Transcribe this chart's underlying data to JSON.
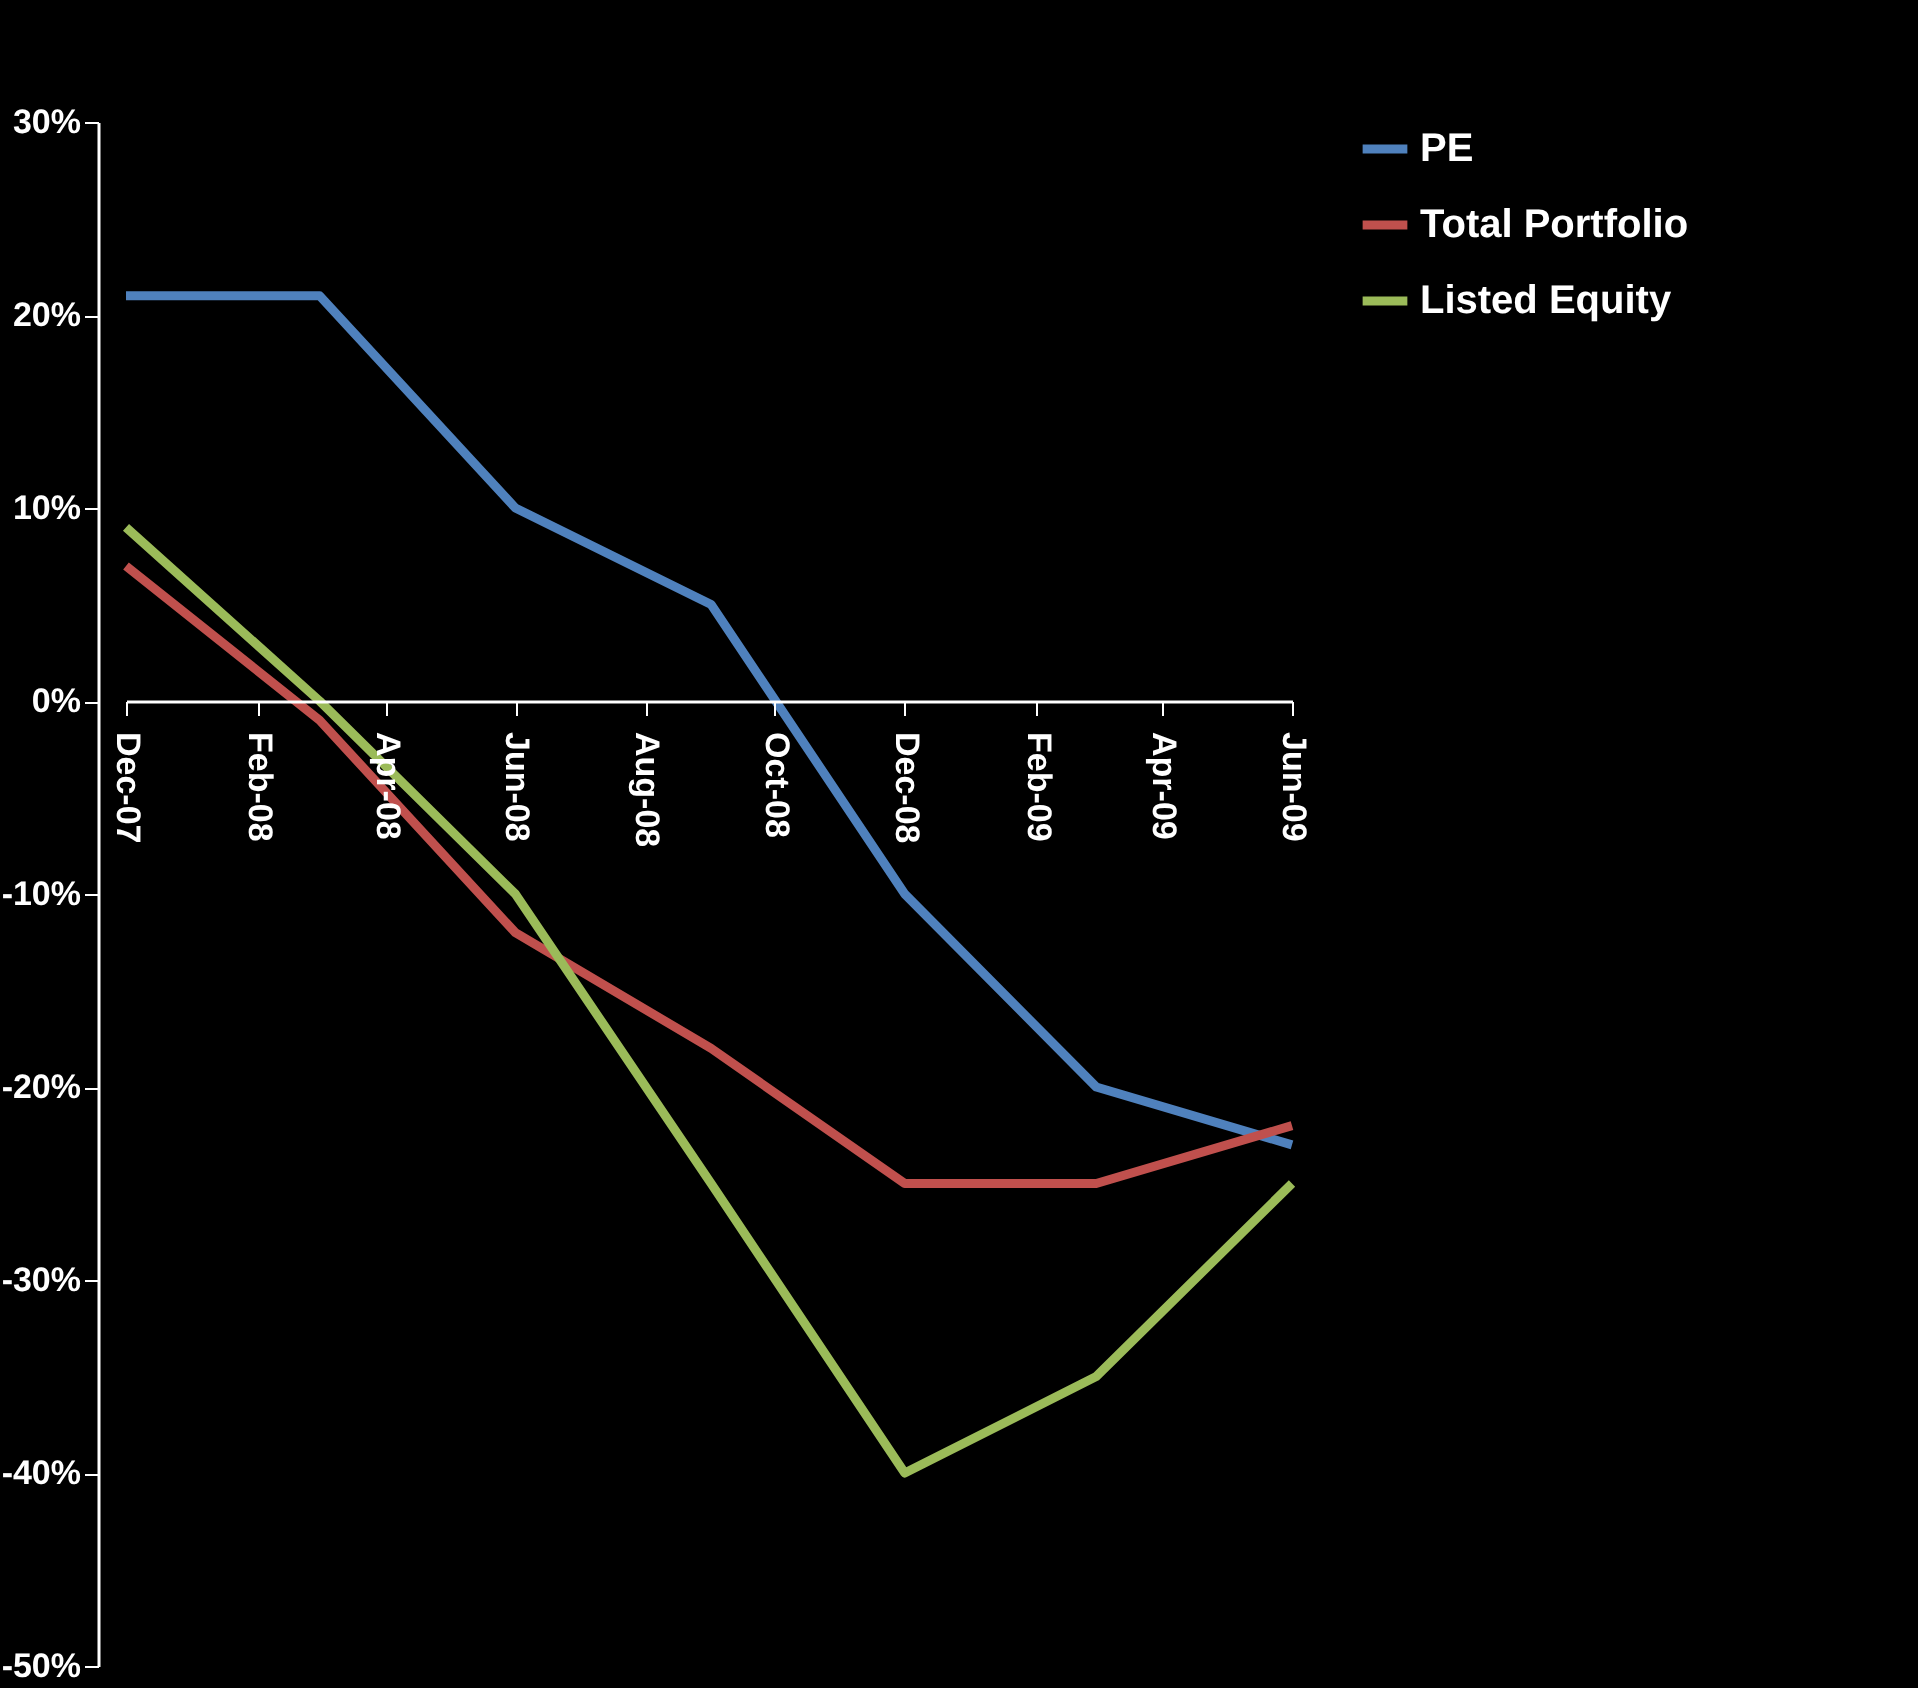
{
  "chart_data": {
    "type": "line",
    "x": [
      "2007-12",
      "2008-03",
      "2008-06",
      "2008-09",
      "2008-12",
      "2009-03",
      "2009-06"
    ],
    "series": [
      {
        "name": "PE",
        "color": "#4f81bd",
        "values": [
          21,
          21,
          10,
          5,
          -10,
          -20,
          -23
        ]
      },
      {
        "name": "Total Portfolio",
        "color": "#c0504d",
        "values": [
          7,
          -1,
          -12,
          -18,
          -25,
          -25,
          -22
        ]
      },
      {
        "name": "Listed Equity",
        "color": "#9bbb59",
        "values": [
          9,
          0,
          -10,
          -25,
          -40,
          -35,
          -25
        ]
      }
    ],
    "xlim": [
      "2007-12",
      "2009-06"
    ],
    "xticks": [
      {
        "value": "2007-12",
        "label": "Dec-07"
      },
      {
        "value": "2008-02",
        "label": "Feb-08"
      },
      {
        "value": "2008-04",
        "label": "Apr-08"
      },
      {
        "value": "2008-06",
        "label": "Jun-08"
      },
      {
        "value": "2008-08",
        "label": "Aug-08"
      },
      {
        "value": "2008-10",
        "label": "Oct-08"
      },
      {
        "value": "2008-12",
        "label": "Dec-08"
      },
      {
        "value": "2009-02",
        "label": "Feb-09"
      },
      {
        "value": "2009-04",
        "label": "Apr-09"
      },
      {
        "value": "2009-06",
        "label": "Jun-09"
      }
    ],
    "ylim": [
      -50,
      30
    ],
    "yticks": [
      {
        "value": -50,
        "label": "-50%"
      },
      {
        "value": -40,
        "label": "-40%"
      },
      {
        "value": -30,
        "label": "-30%"
      },
      {
        "value": -20,
        "label": "-20%"
      },
      {
        "value": -10,
        "label": "-10%"
      },
      {
        "value": 0,
        "label": "0%"
      },
      {
        "value": 10,
        "label": "10%"
      },
      {
        "value": 20,
        "label": "20%"
      },
      {
        "value": 30,
        "label": "30%"
      }
    ],
    "grid": false,
    "legend": "right",
    "marker": "none",
    "line_style": "solid"
  }
}
